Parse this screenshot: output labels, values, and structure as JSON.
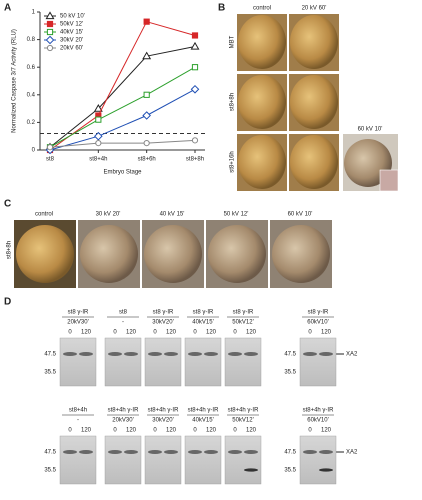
{
  "chart_data": {
    "type": "line",
    "panel_label": "A",
    "ylabel": "Normalized Caspase 3/7 Activity (RLU)",
    "xlabel": "Embryo Stage",
    "categories": [
      "st8",
      "st8+4h",
      "st8+6h",
      "st8+8h"
    ],
    "ylim": [
      0,
      1
    ],
    "yticks": [
      0,
      0.2,
      0.4,
      0.6,
      0.8,
      1
    ],
    "reference_line": 0.12,
    "legend": "upper left",
    "series": [
      {
        "name": "50 kV 10'",
        "color": "#222222",
        "marker": "triangle",
        "values": [
          0.02,
          0.3,
          0.68,
          0.75
        ]
      },
      {
        "name": "50kV 12'",
        "color": "#d62728",
        "marker": "square",
        "values": [
          0,
          0.25,
          0.93,
          0.83
        ]
      },
      {
        "name": "40kV 15'",
        "color": "#2ca02c",
        "marker": "square-open",
        "values": [
          0.02,
          0.22,
          0.4,
          0.6
        ]
      },
      {
        "name": "30kV 20'",
        "color": "#1f4fb4",
        "marker": "diamond-open",
        "values": [
          0,
          0.1,
          0.25,
          0.44
        ]
      },
      {
        "name": "20kV 60'",
        "color": "#888888",
        "marker": "circle-open",
        "values": [
          0.02,
          0.05,
          0.05,
          0.07
        ]
      }
    ]
  },
  "panels": {
    "B": {
      "label": "B",
      "columns": [
        "control",
        "20 kV 60'"
      ],
      "rows": [
        "MBT",
        "st8+8h",
        "st8+16h"
      ],
      "inset": "60 kV 10'"
    },
    "C": {
      "label": "C",
      "row": "st8+8h",
      "columns": [
        "control",
        "30 kV 20'",
        "40 kV 15'",
        "50 kV 12'",
        "60 kV 10'"
      ]
    },
    "D": {
      "label": "D",
      "rows": [
        {
          "markers": [
            "47.5",
            "35.5"
          ],
          "band_label": "XA2",
          "groups": [
            {
              "title": "st8 γ-IR",
              "dose": "20kV30'",
              "lanes": [
                "0",
                "120"
              ]
            },
            {
              "title": "st8",
              "dose": "-",
              "lanes": [
                "0",
                "120"
              ]
            },
            {
              "title": "st8 γ-IR",
              "dose": "30kV20'",
              "lanes": [
                "0",
                "120"
              ]
            },
            {
              "title": "st8 γ-IR",
              "dose": "40kV15'",
              "lanes": [
                "0",
                "120"
              ]
            },
            {
              "title": "st8 γ-IR",
              "dose": "50kV12'",
              "lanes": [
                "0",
                "120"
              ]
            },
            {
              "title": "st8 γ-IR",
              "dose": "60kV10'",
              "lanes": [
                "0",
                "120"
              ]
            }
          ]
        },
        {
          "markers": [
            "47.5",
            "35.5"
          ],
          "band_label": "XA2",
          "groups": [
            {
              "title": "st8+4h",
              "dose": "-",
              "lanes": [
                "0",
                "120"
              ]
            },
            {
              "title": "st8+4h γ-IR",
              "dose": "20kV30'",
              "lanes": [
                "0",
                "120"
              ]
            },
            {
              "title": "st8+4h γ-IR",
              "dose": "30kV20'",
              "lanes": [
                "0",
                "120"
              ]
            },
            {
              "title": "st8+4h γ-IR",
              "dose": "40kV15'",
              "lanes": [
                "0",
                "120"
              ]
            },
            {
              "title": "st8+4h γ-IR",
              "dose": "50kV12'",
              "lanes": [
                "0",
                "120"
              ]
            },
            {
              "title": "st8+4h γ-IR",
              "dose": "60kV10'",
              "lanes": [
                "0",
                "120"
              ]
            }
          ]
        }
      ]
    }
  }
}
